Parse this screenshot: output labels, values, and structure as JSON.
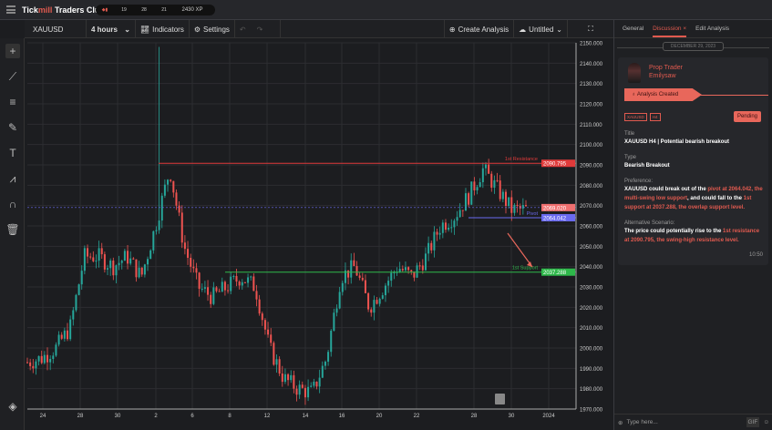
{
  "app": {
    "brand_prefix": "Tick",
    "brand_mid": "mill",
    "brand_suffix": " Traders Club",
    "xp": {
      "a": "19",
      "b": "28",
      "c": "21",
      "total": "2430 XP"
    }
  },
  "toolbar": {
    "symbol": "XAUUSD",
    "interval": "4 hours",
    "indicators": "Indicators",
    "settings": "Settings",
    "create": "Create Analysis",
    "layout": "Untitled"
  },
  "panel": {
    "tabs": [
      "General",
      "Discussion",
      "Edit Analysis"
    ],
    "date": "DECEMBER 29, 2023",
    "user_role": "Prop Trader",
    "user_name": "Emilysaw",
    "event": "Analysis Created",
    "tags": [
      "XAUUSD",
      "H4"
    ],
    "status": "Pending",
    "title_label": "Title",
    "title": "XAUUSD H4 | Potential bearish breakout",
    "type_label": "Type",
    "type": "Bearish Breakout",
    "pref_label": "Preference:",
    "pref_1": "XAUUSD could break out of the ",
    "pref_2": "pivot at 2064.042, the multi-swing low support",
    ", ": "",
    "pref_3": ", and could fall to the ",
    "pref_4": "1st support at 2037.288, the overlap support level.",
    "alt_label": "Alternative Scenario:",
    "alt_1": "The price could potentially rise to the ",
    "alt_2": "1st resistance at 2090.795, the swing-high resistance level.",
    "time": "10:50",
    "input_placeholder": "Type here...",
    "gif": "GIF"
  },
  "chart_data": {
    "type": "candlestick",
    "symbol": "XAUUSD",
    "ylim": [
      1970,
      2150
    ],
    "yticks": [
      1970,
      1980,
      1990,
      2000,
      2010,
      2020,
      2030,
      2040,
      2050,
      2060,
      2070,
      2080,
      2090,
      2100,
      2110,
      2120,
      2130,
      2140,
      2150
    ],
    "xticks": [
      "24",
      "28",
      "30",
      "2",
      "6",
      "8",
      "12",
      "14",
      "16",
      "20",
      "22",
      "28",
      "30",
      "2024"
    ],
    "price_path": [
      1993,
      1995,
      2000,
      2010,
      2045,
      2045,
      2040,
      2045,
      2035,
      2060,
      2088,
      2050,
      2030,
      2025,
      2030,
      2035,
      2030,
      2000,
      1985,
      1980,
      1978,
      1995,
      2035,
      2040,
      2020,
      2030,
      2040,
      2035,
      2045,
      2060,
      2065,
      2075,
      2088,
      2078,
      2068,
      2068
    ],
    "spike_high": 2148,
    "levels": [
      {
        "name": "1st Resistance",
        "value": "2090.795",
        "color": "#e03a3a"
      },
      {
        "name": "Pivot",
        "value": "2064.042",
        "color": "#6a6af0"
      },
      {
        "name": "1st Support",
        "value": "2037.288",
        "color": "#2eb84a"
      }
    ],
    "current_price": "2069.020",
    "up_color": "#26a69a",
    "down_color": "#ef5350"
  }
}
